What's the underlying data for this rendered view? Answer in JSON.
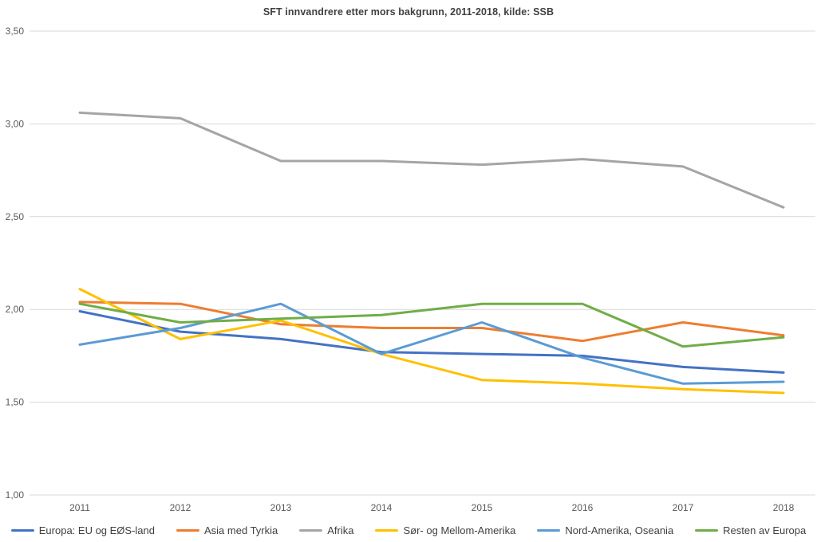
{
  "chart_data": {
    "type": "line",
    "title": "SFT innvandrere etter mors bakgrunn, 2011-2018, kilde: SSB",
    "categories": [
      "2011",
      "2012",
      "2013",
      "2014",
      "2015",
      "2016",
      "2017",
      "2018"
    ],
    "series": [
      {
        "name": "Europa: EU og EØS-land",
        "color": "#4472C4",
        "values": [
          1.99,
          1.88,
          1.84,
          1.77,
          1.76,
          1.75,
          1.69,
          1.66
        ]
      },
      {
        "name": "Asia med Tyrkia",
        "color": "#ED7D31",
        "values": [
          2.04,
          2.03,
          1.92,
          1.9,
          1.9,
          1.83,
          1.93,
          1.86
        ]
      },
      {
        "name": "Afrika",
        "color": "#A5A5A5",
        "values": [
          3.06,
          3.03,
          2.8,
          2.8,
          2.78,
          2.81,
          2.77,
          2.55
        ]
      },
      {
        "name": "Sør- og Mellom-Amerika",
        "color": "#FFC000",
        "values": [
          2.11,
          1.84,
          1.94,
          1.76,
          1.62,
          1.6,
          1.57,
          1.55
        ]
      },
      {
        "name": "Nord-Amerika, Oseania",
        "color": "#5B9BD5",
        "values": [
          1.81,
          1.9,
          2.03,
          1.76,
          1.93,
          1.74,
          1.6,
          1.61
        ]
      },
      {
        "name": "Resten av Europa",
        "color": "#70AD47",
        "values": [
          2.03,
          1.93,
          1.95,
          1.97,
          2.03,
          2.03,
          1.8,
          1.85
        ]
      }
    ],
    "ylim": [
      1.0,
      3.5
    ],
    "yticks": [
      {
        "value": 1.0,
        "label": "1,00"
      },
      {
        "value": 1.5,
        "label": "1,50"
      },
      {
        "value": 2.0,
        "label": "2,00"
      },
      {
        "value": 2.5,
        "label": "2,50"
      },
      {
        "value": 3.0,
        "label": "3,00"
      },
      {
        "value": 3.5,
        "label": "3,50"
      }
    ],
    "xlabel": "",
    "ylabel": "",
    "grid": "horizontal",
    "legend_position": "bottom",
    "gridline_color": "#D9D9D9"
  }
}
